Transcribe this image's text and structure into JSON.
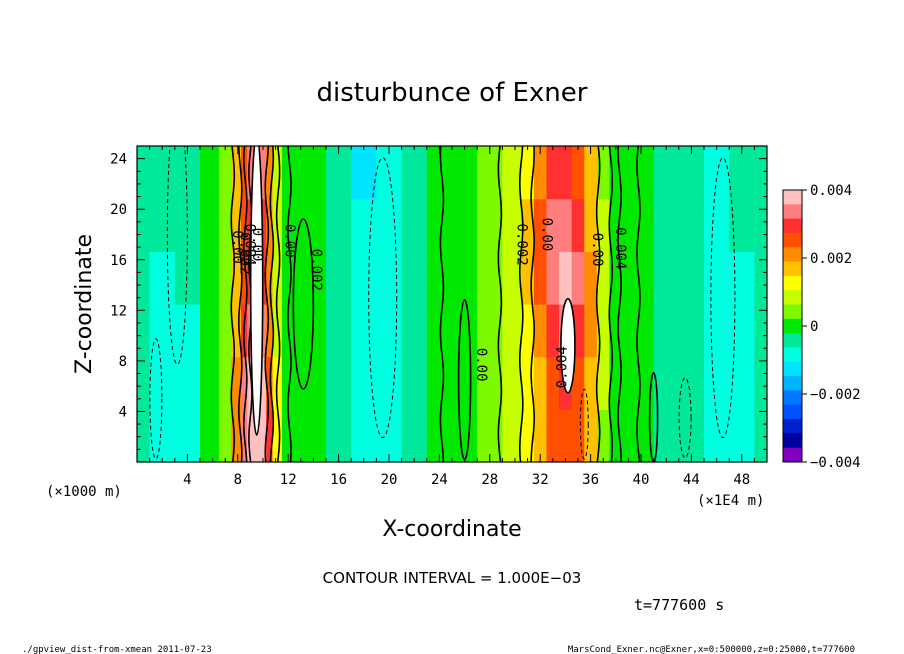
{
  "chart_data": {
    "type": "heatmap",
    "title": "disturbunce of Exner",
    "xlabel": "X-coordinate",
    "ylabel": "Z-coordinate",
    "x_unit_note": "(×1E4 m)",
    "y_unit_note": "(×1000 m)",
    "xlim": [
      0,
      50
    ],
    "ylim": [
      0,
      25
    ],
    "x_ticks": [
      4,
      8,
      12,
      16,
      20,
      24,
      28,
      32,
      36,
      40,
      44,
      48
    ],
    "y_ticks": [
      4,
      8,
      12,
      16,
      20,
      24
    ],
    "x_tick_labels": [
      "4",
      "8",
      "12",
      "16",
      "20",
      "24",
      "28",
      "32",
      "36",
      "40",
      "44",
      "48"
    ],
    "y_tick_labels": [
      "4",
      "8",
      "12",
      "16",
      "20",
      "24"
    ],
    "colorbar": {
      "range": [
        -0.004,
        0.004
      ],
      "ticks": [
        "0.004",
        "0.002",
        "0",
        "−0.002",
        "−0.004"
      ],
      "colors": [
        "#ffc0c0",
        "#ff7f7f",
        "#ff3030",
        "#ff5000",
        "#ff8c00",
        "#ffc000",
        "#ffff00",
        "#c8ff00",
        "#7dfa00",
        "#00e800",
        "#00e89c",
        "#00ffe0",
        "#00e4ff",
        "#00b4ff",
        "#0078ff",
        "#0050ff",
        "#0020d0",
        "#0000a0",
        "#8000c0"
      ]
    },
    "columns_x_at_z_high": [
      {
        "x": 0.0,
        "value": -0.0006
      },
      {
        "x": 2.0,
        "value": -0.0008
      },
      {
        "x": 4.0,
        "value": -0.0007
      },
      {
        "x": 6.0,
        "value": -0.0002
      },
      {
        "x": 7.0,
        "value": 0.0005
      },
      {
        "x": 8.0,
        "value": 0.0022
      },
      {
        "x": 8.5,
        "value": 0.0034
      },
      {
        "x": 9.0,
        "value": 0.0042
      },
      {
        "x": 9.5,
        "value": 0.0048
      },
      {
        "x": 10.0,
        "value": 0.004
      },
      {
        "x": 10.5,
        "value": 0.0028
      },
      {
        "x": 11.0,
        "value": 0.0012
      },
      {
        "x": 12.0,
        "value": 0.0002
      },
      {
        "x": 14.0,
        "value": 0.0001
      },
      {
        "x": 16.0,
        "value": -0.0004
      },
      {
        "x": 18.0,
        "value": -0.0012
      },
      {
        "x": 20.0,
        "value": -0.001
      },
      {
        "x": 22.0,
        "value": -0.0004
      },
      {
        "x": 24.0,
        "value": 0.0
      },
      {
        "x": 26.0,
        "value": 0.0001
      },
      {
        "x": 28.0,
        "value": 0.0004
      },
      {
        "x": 30.0,
        "value": 0.001
      },
      {
        "x": 31.0,
        "value": 0.0016
      },
      {
        "x": 32.0,
        "value": 0.0024
      },
      {
        "x": 33.0,
        "value": 0.0034
      },
      {
        "x": 34.0,
        "value": 0.0036
      },
      {
        "x": 35.0,
        "value": 0.0032
      },
      {
        "x": 36.0,
        "value": 0.002
      },
      {
        "x": 37.0,
        "value": 0.0008
      },
      {
        "x": 38.0,
        "value": 0.0002
      },
      {
        "x": 40.0,
        "value": 0.0001
      },
      {
        "x": 42.0,
        "value": -0.0004
      },
      {
        "x": 44.0,
        "value": -0.0006
      },
      {
        "x": 46.0,
        "value": -0.001
      },
      {
        "x": 48.0,
        "value": -0.0008
      },
      {
        "x": 50.0,
        "value": -0.0005
      }
    ],
    "contour_labels": [
      "0.00",
      "0.002",
      "0.004",
      "0.00",
      "0.00",
      "0.002",
      "0.002",
      "0.00",
      "0.00",
      "0.004",
      "0.00"
    ]
  },
  "contour_interval_text": "CONTOUR INTERVAL = 1.000E−03",
  "time_text": "t=777600 s",
  "footer_left": "./gpview_dist-from-xmean  2011-07-23",
  "footer_right": "MarsCond_Exner.nc@Exner,x=0:500000,z=0:25000,t=777600"
}
